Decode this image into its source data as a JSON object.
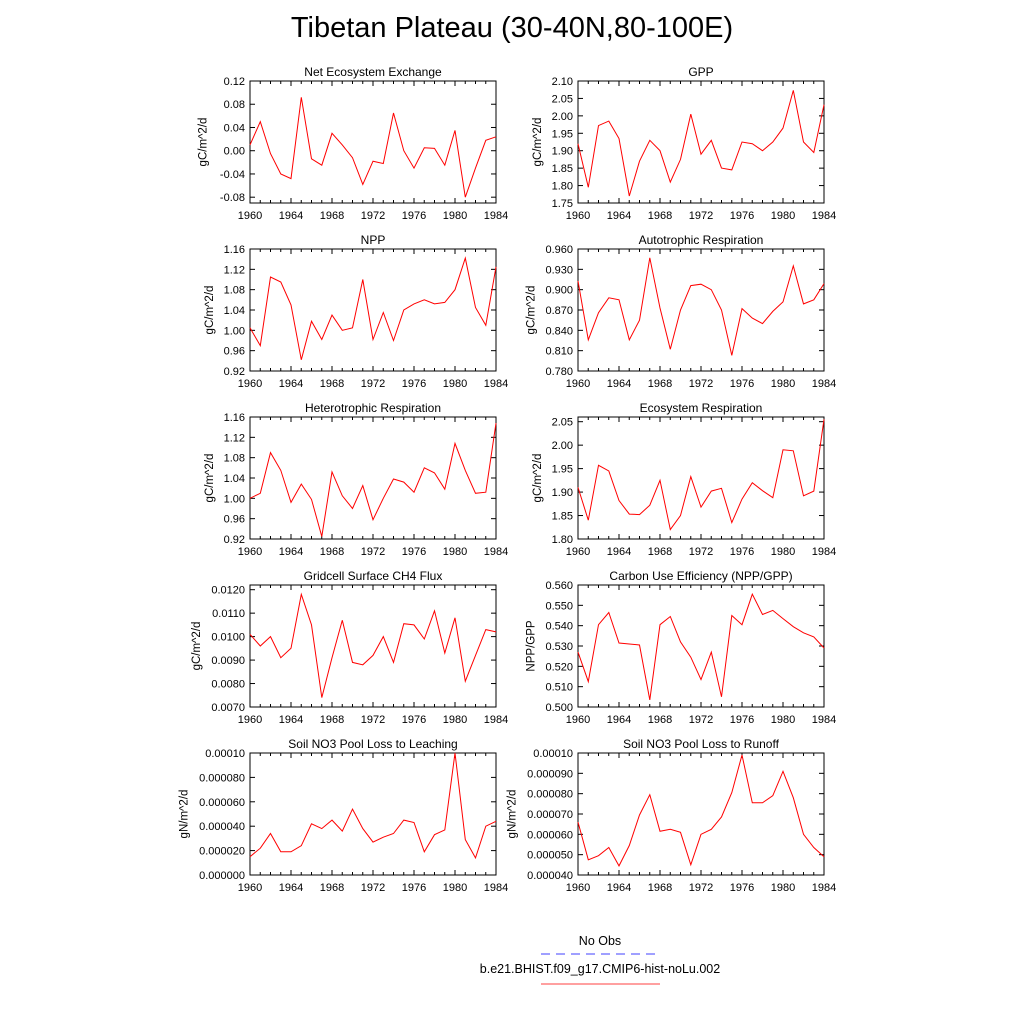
{
  "title": "Tibetan Plateau (30-40N,80-100E)",
  "chart_data": [
    {
      "type": "line",
      "title": "Net Ecosystem Exchange",
      "ylabel": "gC/m^2/d",
      "yticks": [
        "0.12",
        "0.08",
        "0.04",
        "0.00",
        "-0.04",
        "-0.08"
      ],
      "ylim": [
        -0.09,
        0.12
      ],
      "xticks": [
        "1960",
        "1964",
        "1968",
        "1972",
        "1976",
        "1980",
        "1984"
      ],
      "xlim": [
        1960,
        1984
      ],
      "x": [
        1960,
        1961,
        1962,
        1963,
        1964,
        1965,
        1966,
        1967,
        1968,
        1969,
        1970,
        1971,
        1972,
        1973,
        1974,
        1975,
        1976,
        1977,
        1978,
        1979,
        1980,
        1981,
        1982,
        1983,
        1984
      ],
      "series": [
        {
          "color": "#ff0000",
          "values": [
            0.01,
            0.05,
            -0.005,
            -0.04,
            -0.048,
            0.092,
            -0.014,
            -0.025,
            0.03,
            0.01,
            -0.012,
            -0.058,
            -0.018,
            -0.022,
            0.065,
            0.0,
            -0.03,
            0.005,
            0.004,
            -0.025,
            0.035,
            -0.08,
            -0.03,
            0.018,
            0.024
          ]
        }
      ]
    },
    {
      "type": "line",
      "title": "GPP",
      "ylabel": "gC/m^2/d",
      "yticks": [
        "2.10",
        "2.05",
        "2.00",
        "1.95",
        "1.90",
        "1.85",
        "1.80",
        "1.75"
      ],
      "ylim": [
        1.75,
        2.1
      ],
      "xticks": [
        "1960",
        "1964",
        "1968",
        "1972",
        "1976",
        "1980",
        "1984"
      ],
      "xlim": [
        1960,
        1984
      ],
      "x": [
        1960,
        1961,
        1962,
        1963,
        1964,
        1965,
        1966,
        1967,
        1968,
        1969,
        1970,
        1971,
        1972,
        1973,
        1974,
        1975,
        1976,
        1977,
        1978,
        1979,
        1980,
        1981,
        1982,
        1983,
        1984
      ],
      "series": [
        {
          "color": "#ff0000",
          "values": [
            1.92,
            1.795,
            1.972,
            1.985,
            1.935,
            1.77,
            1.87,
            1.93,
            1.9,
            1.81,
            1.875,
            2.005,
            1.89,
            1.93,
            1.85,
            1.845,
            1.925,
            1.92,
            1.9,
            1.925,
            1.965,
            2.073,
            1.925,
            1.895,
            2.032
          ]
        }
      ]
    },
    {
      "type": "line",
      "title": "NPP",
      "ylabel": "gC/m^2/d",
      "yticks": [
        "1.16",
        "1.12",
        "1.08",
        "1.04",
        "1.00",
        "0.96",
        "0.92"
      ],
      "ylim": [
        0.92,
        1.16
      ],
      "xticks": [
        "1960",
        "1964",
        "1968",
        "1972",
        "1976",
        "1980",
        "1984"
      ],
      "xlim": [
        1960,
        1984
      ],
      "x": [
        1960,
        1961,
        1962,
        1963,
        1964,
        1965,
        1966,
        1967,
        1968,
        1969,
        1970,
        1971,
        1972,
        1973,
        1974,
        1975,
        1976,
        1977,
        1978,
        1979,
        1980,
        1981,
        1982,
        1983,
        1984
      ],
      "series": [
        {
          "color": "#ff0000",
          "values": [
            1.005,
            0.97,
            1.105,
            1.095,
            1.05,
            0.942,
            1.018,
            0.982,
            1.03,
            1.0,
            1.005,
            1.1,
            0.982,
            1.035,
            0.98,
            1.04,
            1.052,
            1.06,
            1.052,
            1.055,
            1.08,
            1.142,
            1.045,
            1.01,
            1.125
          ]
        }
      ]
    },
    {
      "type": "line",
      "title": "Autotrophic Respiration",
      "ylabel": "gC/m^2/d",
      "yticks": [
        "0.960",
        "0.930",
        "0.900",
        "0.870",
        "0.840",
        "0.810",
        "0.780"
      ],
      "ylim": [
        0.78,
        0.96
      ],
      "xticks": [
        "1960",
        "1964",
        "1968",
        "1972",
        "1976",
        "1980",
        "1984"
      ],
      "xlim": [
        1960,
        1984
      ],
      "x": [
        1960,
        1961,
        1962,
        1963,
        1964,
        1965,
        1966,
        1967,
        1968,
        1969,
        1970,
        1971,
        1972,
        1973,
        1974,
        1975,
        1976,
        1977,
        1978,
        1979,
        1980,
        1981,
        1982,
        1983,
        1984
      ],
      "series": [
        {
          "color": "#ff0000",
          "values": [
            0.913,
            0.826,
            0.866,
            0.888,
            0.885,
            0.826,
            0.855,
            0.947,
            0.873,
            0.812,
            0.87,
            0.906,
            0.908,
            0.9,
            0.87,
            0.803,
            0.872,
            0.858,
            0.85,
            0.868,
            0.882,
            0.935,
            0.879,
            0.885,
            0.909
          ]
        }
      ]
    },
    {
      "type": "line",
      "title": "Heterotrophic Respiration",
      "ylabel": "gC/m^2/d",
      "yticks": [
        "1.16",
        "1.12",
        "1.08",
        "1.04",
        "1.00",
        "0.96",
        "0.92"
      ],
      "ylim": [
        0.92,
        1.16
      ],
      "xticks": [
        "1960",
        "1964",
        "1968",
        "1972",
        "1976",
        "1980",
        "1984"
      ],
      "xlim": [
        1960,
        1984
      ],
      "x": [
        1960,
        1961,
        1962,
        1963,
        1964,
        1965,
        1966,
        1967,
        1968,
        1969,
        1970,
        1971,
        1972,
        1973,
        1974,
        1975,
        1976,
        1977,
        1978,
        1979,
        1980,
        1981,
        1982,
        1983,
        1984
      ],
      "series": [
        {
          "color": "#ff0000",
          "values": [
            1.0,
            1.01,
            1.09,
            1.055,
            0.992,
            1.028,
            0.998,
            0.925,
            1.052,
            1.005,
            0.98,
            1.025,
            0.958,
            1.0,
            1.038,
            1.032,
            1.012,
            1.06,
            1.05,
            1.018,
            1.108,
            1.055,
            1.01,
            1.012,
            1.148
          ]
        }
      ]
    },
    {
      "type": "line",
      "title": "Ecosystem Respiration",
      "ylabel": "gC/m^2/d",
      "yticks": [
        "2.05",
        "2.00",
        "1.95",
        "1.90",
        "1.85",
        "1.80"
      ],
      "ylim": [
        1.8,
        2.06
      ],
      "xticks": [
        "1960",
        "1964",
        "1968",
        "1972",
        "1976",
        "1980",
        "1984"
      ],
      "xlim": [
        1960,
        1984
      ],
      "x": [
        1960,
        1961,
        1962,
        1963,
        1964,
        1965,
        1966,
        1967,
        1968,
        1969,
        1970,
        1971,
        1972,
        1973,
        1974,
        1975,
        1976,
        1977,
        1978,
        1979,
        1980,
        1981,
        1982,
        1983,
        1984
      ],
      "series": [
        {
          "color": "#ff0000",
          "values": [
            1.91,
            1.84,
            1.957,
            1.945,
            1.882,
            1.853,
            1.852,
            1.872,
            1.925,
            1.82,
            1.85,
            1.933,
            1.868,
            1.902,
            1.908,
            1.835,
            1.885,
            1.92,
            1.903,
            1.888,
            1.99,
            1.988,
            1.892,
            1.902,
            2.055
          ]
        }
      ]
    },
    {
      "type": "line",
      "title": "Gridcell Surface CH4 Flux",
      "ylabel": "gC/m^2/d",
      "yticks": [
        "0.0120",
        "0.0110",
        "0.0100",
        "0.0090",
        "0.0080",
        "0.0070"
      ],
      "ylim": [
        0.007,
        0.0122
      ],
      "xticks": [
        "1960",
        "1964",
        "1968",
        "1972",
        "1976",
        "1980",
        "1984"
      ],
      "xlim": [
        1960,
        1984
      ],
      "x": [
        1960,
        1961,
        1962,
        1963,
        1964,
        1965,
        1966,
        1967,
        1968,
        1969,
        1970,
        1971,
        1972,
        1973,
        1974,
        1975,
        1976,
        1977,
        1978,
        1979,
        1980,
        1981,
        1982,
        1983,
        1984
      ],
      "series": [
        {
          "color": "#ff0000",
          "values": [
            0.0101,
            0.0096,
            0.01,
            0.0091,
            0.0095,
            0.0118,
            0.0105,
            0.0074,
            0.0091,
            0.0107,
            0.0089,
            0.0088,
            0.0092,
            0.01,
            0.0089,
            0.01055,
            0.0105,
            0.0099,
            0.0111,
            0.0093,
            0.0108,
            0.0081,
            0.0092,
            0.0103,
            0.0102
          ]
        }
      ]
    },
    {
      "type": "line",
      "title": "Carbon Use Efficiency (NPP/GPP)",
      "ylabel": "NPP/GPP",
      "yticks": [
        "0.560",
        "0.550",
        "0.540",
        "0.530",
        "0.520",
        "0.510",
        "0.500"
      ],
      "ylim": [
        0.5,
        0.56
      ],
      "xticks": [
        "1960",
        "1964",
        "1968",
        "1972",
        "1976",
        "1980",
        "1984"
      ],
      "xlim": [
        1960,
        1984
      ],
      "x": [
        1960,
        1961,
        1962,
        1963,
        1964,
        1965,
        1966,
        1967,
        1968,
        1969,
        1970,
        1971,
        1972,
        1973,
        1974,
        1975,
        1976,
        1977,
        1978,
        1979,
        1980,
        1981,
        1982,
        1983,
        1984
      ],
      "series": [
        {
          "color": "#ff0000",
          "values": [
            0.527,
            0.5125,
            0.5405,
            0.5465,
            0.5315,
            0.531,
            0.5305,
            0.5035,
            0.5405,
            0.5445,
            0.532,
            0.5245,
            0.5135,
            0.527,
            0.505,
            0.545,
            0.5405,
            0.5555,
            0.5455,
            0.5475,
            0.5435,
            0.5395,
            0.5365,
            0.5345,
            0.529
          ]
        }
      ]
    },
    {
      "type": "line",
      "title": "Soil NO3 Pool Loss to Leaching",
      "ylabel": "gN/m^2/d",
      "yticks": [
        "0.00010",
        "0.000080",
        "0.000060",
        "0.000040",
        "0.000020",
        "0.000000"
      ],
      "ylim": [
        0.0,
        0.0001
      ],
      "xticks": [
        "1960",
        "1964",
        "1968",
        "1972",
        "1976",
        "1980",
        "1984"
      ],
      "xlim": [
        1960,
        1984
      ],
      "x": [
        1960,
        1961,
        1962,
        1963,
        1964,
        1965,
        1966,
        1967,
        1968,
        1969,
        1970,
        1971,
        1972,
        1973,
        1974,
        1975,
        1976,
        1977,
        1978,
        1979,
        1980,
        1981,
        1982,
        1983,
        1984
      ],
      "series": [
        {
          "color": "#ff0000",
          "values": [
            1.5e-05,
            2.2e-05,
            3.4e-05,
            1.9e-05,
            1.9e-05,
            2.4e-05,
            4.2e-05,
            3.8e-05,
            4.5e-05,
            3.6e-05,
            5.4e-05,
            3.8e-05,
            2.7e-05,
            3.1e-05,
            3.4e-05,
            4.5e-05,
            4.3e-05,
            1.9e-05,
            3.3e-05,
            3.7e-05,
            0.0001,
            2.9e-05,
            1.4e-05,
            4e-05,
            4.4e-05
          ]
        }
      ]
    },
    {
      "type": "line",
      "title": "Soil NO3 Pool Loss to Runoff",
      "ylabel": "gN/m^2/d",
      "yticks": [
        "0.00010",
        "0.000090",
        "0.000080",
        "0.000070",
        "0.000060",
        "0.000050",
        "0.000040"
      ],
      "ylim": [
        4e-05,
        0.0001
      ],
      "xticks": [
        "1960",
        "1964",
        "1968",
        "1972",
        "1976",
        "1980",
        "1984"
      ],
      "xlim": [
        1960,
        1984
      ],
      "x": [
        1960,
        1961,
        1962,
        1963,
        1964,
        1965,
        1966,
        1967,
        1968,
        1969,
        1970,
        1971,
        1972,
        1973,
        1974,
        1975,
        1976,
        1977,
        1978,
        1979,
        1980,
        1981,
        1982,
        1983,
        1984
      ],
      "series": [
        {
          "color": "#ff0000",
          "values": [
            6.6e-05,
            4.75e-05,
            4.95e-05,
            5.35e-05,
            4.45e-05,
            5.45e-05,
            6.95e-05,
            7.95e-05,
            6.15e-05,
            6.25e-05,
            6.1e-05,
            4.5e-05,
            6e-05,
            6.25e-05,
            6.85e-05,
            8.05e-05,
            9.9e-05,
            7.55e-05,
            7.55e-05,
            7.9e-05,
            9.1e-05,
            7.8e-05,
            6e-05,
            5.35e-05,
            4.9e-05
          ]
        }
      ]
    }
  ],
  "legend": {
    "obs_label": "No Obs",
    "obs_color": "#4040ff",
    "model_label": "b.e21.BHIST.f09_g17.CMIP6-hist-noLu.002",
    "model_color": "#ff4040"
  }
}
